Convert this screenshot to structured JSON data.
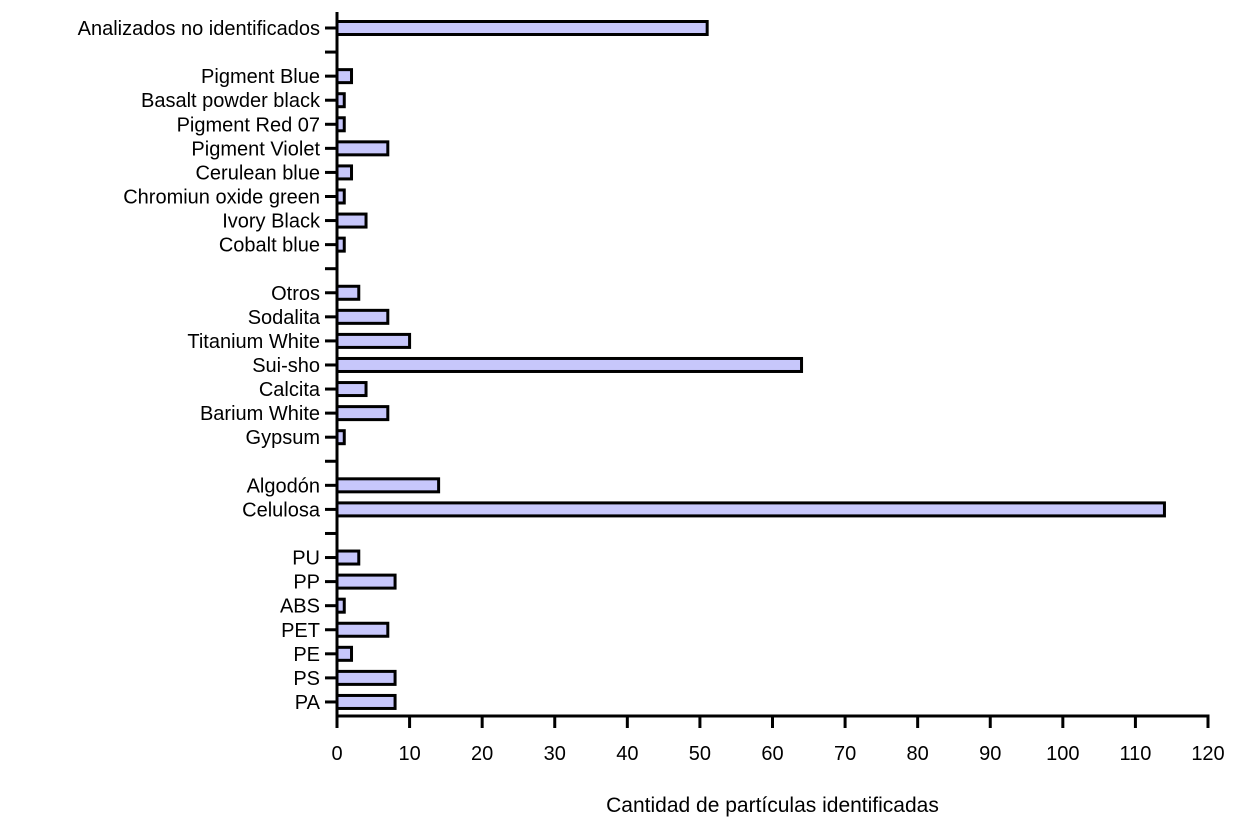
{
  "chart_data": {
    "type": "bar",
    "orientation": "horizontal",
    "xlabel": "Cantidad de partículas identificadas",
    "ylabel": "",
    "xlim": [
      0,
      120
    ],
    "x_ticks": [
      "0",
      "10",
      "20",
      "30",
      "40",
      "50",
      "60",
      "70",
      "80",
      "90",
      "100",
      "110",
      "120"
    ],
    "grid": false,
    "legend": "none",
    "bar_fill": "#c7c7fb",
    "bar_stroke": "#000000",
    "categories": [
      "Analizados no identificados",
      "",
      "Pigment Blue",
      "Basalt powder black",
      "Pigment Red 07",
      "Pigment Violet",
      "Cerulean blue",
      "Chromiun oxide green",
      "Ivory Black",
      "Cobalt blue",
      "",
      "Otros",
      "Sodalita",
      "Titanium White",
      "Sui-sho",
      "Calcita",
      "Barium White",
      "Gypsum",
      "",
      "Algodón",
      "Celulosa",
      "",
      "PU",
      "PP",
      "ABS",
      "PET",
      "PE",
      "PS",
      "PA"
    ],
    "values": [
      51,
      null,
      2,
      1,
      1,
      7,
      2,
      1,
      4,
      1,
      null,
      3,
      7,
      10,
      64,
      4,
      7,
      1,
      null,
      14,
      114,
      null,
      3,
      8,
      1,
      7,
      2,
      8,
      8
    ]
  }
}
